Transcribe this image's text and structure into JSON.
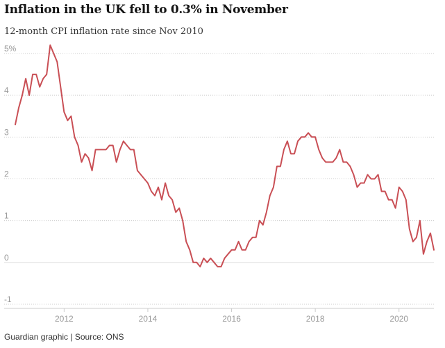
{
  "header": {
    "title": "Inflation in the UK fell to 0.3% in November",
    "subtitle": "12-month CPI inflation rate since Nov 2010"
  },
  "footer": {
    "credit": "Guardian graphic | Source: ONS"
  },
  "colors": {
    "series": "#c94f55",
    "grid": "#cccccc",
    "tick_text": "#999999"
  },
  "chart_data": {
    "type": "line",
    "title": "Inflation in the UK fell to 0.3% in November",
    "subtitle": "12-month CPI inflation rate since Nov 2010",
    "xlabel": "",
    "ylabel": "",
    "ylim": [
      -1,
      5
    ],
    "xlim": [
      "2010-11",
      "2020-11"
    ],
    "y_ticks": [
      {
        "value": 5,
        "label": "5%"
      },
      {
        "value": 4,
        "label": "4"
      },
      {
        "value": 3,
        "label": "3"
      },
      {
        "value": 2,
        "label": "2"
      },
      {
        "value": 1,
        "label": "1"
      },
      {
        "value": 0,
        "label": "0"
      },
      {
        "value": -1,
        "label": "-1"
      }
    ],
    "x_ticks": [
      {
        "value": "2012-01",
        "label": "2012"
      },
      {
        "value": "2014-01",
        "label": "2014"
      },
      {
        "value": "2016-01",
        "label": "2016"
      },
      {
        "value": "2018-01",
        "label": "2018"
      },
      {
        "value": "2020-01",
        "label": "2020"
      }
    ],
    "grid": true,
    "series": [
      {
        "x": [
          "2010-11",
          "2010-12",
          "2011-01",
          "2011-02",
          "2011-03",
          "2011-04",
          "2011-05",
          "2011-06",
          "2011-07",
          "2011-08",
          "2011-09",
          "2011-10",
          "2011-11",
          "2011-12",
          "2012-01",
          "2012-02",
          "2012-03",
          "2012-04",
          "2012-05",
          "2012-06",
          "2012-07",
          "2012-08",
          "2012-09",
          "2012-10",
          "2012-11",
          "2012-12",
          "2013-01",
          "2013-02",
          "2013-03",
          "2013-04",
          "2013-05",
          "2013-06",
          "2013-07",
          "2013-08",
          "2013-09",
          "2013-10",
          "2013-11",
          "2013-12",
          "2014-01",
          "2014-02",
          "2014-03",
          "2014-04",
          "2014-05",
          "2014-06",
          "2014-07",
          "2014-08",
          "2014-09",
          "2014-10",
          "2014-11",
          "2014-12",
          "2015-01",
          "2015-02",
          "2015-03",
          "2015-04",
          "2015-05",
          "2015-06",
          "2015-07",
          "2015-08",
          "2015-09",
          "2015-10",
          "2015-11",
          "2015-12",
          "2016-01",
          "2016-02",
          "2016-03",
          "2016-04",
          "2016-05",
          "2016-06",
          "2016-07",
          "2016-08",
          "2016-09",
          "2016-10",
          "2016-11",
          "2016-12",
          "2017-01",
          "2017-02",
          "2017-03",
          "2017-04",
          "2017-05",
          "2017-06",
          "2017-07",
          "2017-08",
          "2017-09",
          "2017-10",
          "2017-11",
          "2017-12",
          "2018-01",
          "2018-02",
          "2018-03",
          "2018-04",
          "2018-05",
          "2018-06",
          "2018-07",
          "2018-08",
          "2018-09",
          "2018-10",
          "2018-11",
          "2018-12",
          "2019-01",
          "2019-02",
          "2019-03",
          "2019-04",
          "2019-05",
          "2019-06",
          "2019-07",
          "2019-08",
          "2019-09",
          "2019-10",
          "2019-11",
          "2019-12",
          "2020-01",
          "2020-02",
          "2020-03",
          "2020-04",
          "2020-05",
          "2020-06",
          "2020-07",
          "2020-08",
          "2020-09",
          "2020-10",
          "2020-11"
        ],
        "values": [
          3.3,
          3.7,
          4.0,
          4.4,
          4.0,
          4.5,
          4.5,
          4.2,
          4.4,
          4.5,
          5.2,
          5.0,
          4.8,
          4.2,
          3.6,
          3.4,
          3.5,
          3.0,
          2.8,
          2.4,
          2.6,
          2.5,
          2.2,
          2.7,
          2.7,
          2.7,
          2.7,
          2.8,
          2.8,
          2.4,
          2.7,
          2.9,
          2.8,
          2.7,
          2.7,
          2.2,
          2.1,
          2.0,
          1.9,
          1.7,
          1.6,
          1.8,
          1.5,
          1.9,
          1.6,
          1.5,
          1.2,
          1.3,
          1.0,
          0.5,
          0.3,
          0.0,
          0.0,
          -0.1,
          0.1,
          0.0,
          0.1,
          0.0,
          -0.1,
          -0.1,
          0.1,
          0.2,
          0.3,
          0.3,
          0.5,
          0.3,
          0.3,
          0.5,
          0.6,
          0.6,
          1.0,
          0.9,
          1.2,
          1.6,
          1.8,
          2.3,
          2.3,
          2.7,
          2.9,
          2.6,
          2.6,
          2.9,
          3.0,
          3.0,
          3.1,
          3.0,
          3.0,
          2.7,
          2.5,
          2.4,
          2.4,
          2.4,
          2.5,
          2.7,
          2.4,
          2.4,
          2.3,
          2.1,
          1.8,
          1.9,
          1.9,
          2.1,
          2.0,
          2.0,
          2.1,
          1.7,
          1.7,
          1.5,
          1.5,
          1.3,
          1.8,
          1.7,
          1.5,
          0.8,
          0.5,
          0.6,
          1.0,
          0.2,
          0.5,
          0.7,
          0.3
        ]
      }
    ]
  }
}
